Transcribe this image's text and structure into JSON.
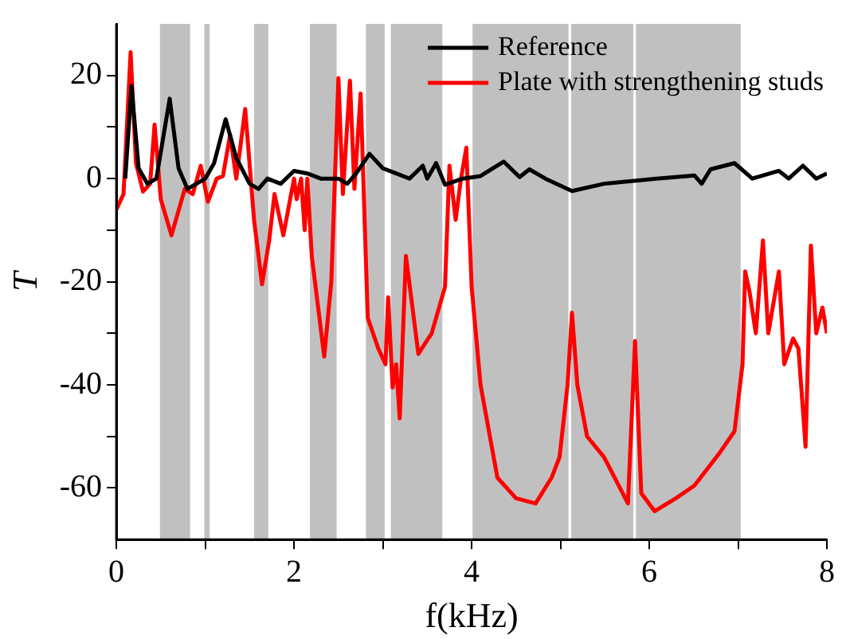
{
  "chart_data": {
    "type": "line",
    "xlabel": "f(kHz)",
    "ylabel": "T",
    "xlim": [
      0,
      8
    ],
    "ylim": [
      -70,
      30
    ],
    "xticks": [
      0,
      {
        "value": 1,
        "label": null
      },
      2,
      {
        "value": 3,
        "label": null
      },
      4,
      {
        "value": 5,
        "label": null
      },
      6,
      {
        "value": 7,
        "label": null
      },
      8
    ],
    "yticks": [
      -60,
      {
        "value": -50,
        "label": null
      },
      -40,
      {
        "value": -30,
        "label": null
      },
      -20,
      {
        "value": -10,
        "label": null
      },
      0,
      {
        "value": 10,
        "label": null
      },
      20
    ],
    "grid": false,
    "legend": "top right",
    "marker": "none",
    "line_style": "solid",
    "bands": [
      {
        "axis": "x",
        "from": 0.49,
        "to": 0.83,
        "color": "#c0c0c0"
      },
      {
        "axis": "x",
        "from": 0.99,
        "to": 1.05,
        "color": "#c0c0c0"
      },
      {
        "axis": "x",
        "from": 1.55,
        "to": 1.71,
        "color": "#c0c0c0"
      },
      {
        "axis": "x",
        "from": 2.18,
        "to": 2.48,
        "color": "#c0c0c0"
      },
      {
        "axis": "x",
        "from": 2.81,
        "to": 3.02,
        "color": "#c0c0c0"
      },
      {
        "axis": "x",
        "from": 3.09,
        "to": 3.67,
        "color": "#c0c0c0"
      },
      {
        "axis": "x",
        "from": 4.01,
        "to": 5.09,
        "color": "#c0c0c0"
      },
      {
        "axis": "x",
        "from": 5.12,
        "to": 5.82,
        "color": "#c0c0c0"
      },
      {
        "axis": "x",
        "from": 5.85,
        "to": 7.03,
        "color": "#c0c0c0"
      }
    ],
    "series": [
      {
        "name": "Reference",
        "color": "#000000",
        "x": [
          0.1,
          0.17,
          0.25,
          0.35,
          0.45,
          0.6,
          0.7,
          0.8,
          1.0,
          1.1,
          1.23,
          1.35,
          1.5,
          1.6,
          1.7,
          1.85,
          2.0,
          2.15,
          2.3,
          2.5,
          2.6,
          2.7,
          2.85,
          3.0,
          3.15,
          3.3,
          3.45,
          3.5,
          3.6,
          3.7,
          3.9,
          4.1,
          4.36,
          4.54,
          4.65,
          4.83,
          5.13,
          5.49,
          6.08,
          6.51,
          6.59,
          6.69,
          6.96,
          7.16,
          7.46,
          7.57,
          7.73,
          7.88,
          8.0
        ],
        "values": [
          0,
          18,
          2,
          -1,
          0,
          15.5,
          2,
          -2,
          0,
          3,
          11.5,
          4,
          -1,
          -2,
          0,
          -1,
          1.5,
          1,
          0,
          0,
          -1,
          1,
          4.8,
          2,
          1,
          0,
          2.5,
          0,
          3,
          -1.2,
          0,
          0.5,
          3.3,
          0.3,
          1.8,
          0,
          -2.4,
          -1,
          0,
          0.6,
          -1,
          1.8,
          3,
          0,
          1.5,
          0,
          2.5,
          0,
          1
        ]
      },
      {
        "name": "Plate with strengthening studs",
        "color": "#ff0000",
        "x": [
          0,
          0.08,
          0.16,
          0.22,
          0.3,
          0.38,
          0.43,
          0.5,
          0.62,
          0.77,
          0.86,
          0.95,
          1.03,
          1.13,
          1.2,
          1.28,
          1.35,
          1.45,
          1.55,
          1.64,
          1.72,
          1.78,
          1.88,
          2.0,
          2.03,
          2.08,
          2.12,
          2.15,
          2.2,
          2.34,
          2.42,
          2.5,
          2.55,
          2.63,
          2.68,
          2.75,
          2.83,
          2.95,
          3.03,
          3.06,
          3.11,
          3.15,
          3.19,
          3.26,
          3.4,
          3.55,
          3.7,
          3.75,
          3.82,
          3.88,
          3.94,
          4.0,
          4.1,
          4.29,
          4.5,
          4.72,
          4.9,
          4.99,
          5.08,
          5.13,
          5.19,
          5.3,
          5.49,
          5.7,
          5.76,
          5.84,
          5.91,
          6.06,
          6.3,
          6.51,
          6.8,
          6.96,
          7.05,
          7.08,
          7.13,
          7.2,
          7.28,
          7.34,
          7.46,
          7.52,
          7.62,
          7.68,
          7.76,
          7.82,
          7.88,
          7.95,
          8.0
        ],
        "values": [
          -6,
          -3,
          24.5,
          3,
          -2.5,
          -1,
          10.5,
          -4,
          -11,
          -2,
          -3,
          2.5,
          -4.5,
          0,
          0.5,
          8.5,
          0,
          13.5,
          -8,
          -20.5,
          -12,
          -3,
          -11,
          0,
          -4,
          0,
          -10,
          0,
          -15,
          -34.5,
          -20,
          19.5,
          -3,
          19,
          -2,
          16.5,
          -27,
          -33,
          -36,
          -23,
          -40.5,
          -36,
          -46.5,
          -15,
          -34,
          -30,
          -21,
          2.5,
          -8,
          0,
          6,
          -21,
          -40,
          -58,
          -62,
          -63,
          -58,
          -54,
          -40,
          -26,
          -40,
          -50,
          -54,
          -61,
          -63,
          -31.5,
          -61,
          -64.5,
          -62,
          -59.5,
          -53,
          -49,
          -36,
          -18,
          -22,
          -30,
          -12,
          -30,
          -18,
          -36,
          -31,
          -33,
          -52,
          -13,
          -30,
          -25,
          -30
        ]
      }
    ]
  }
}
